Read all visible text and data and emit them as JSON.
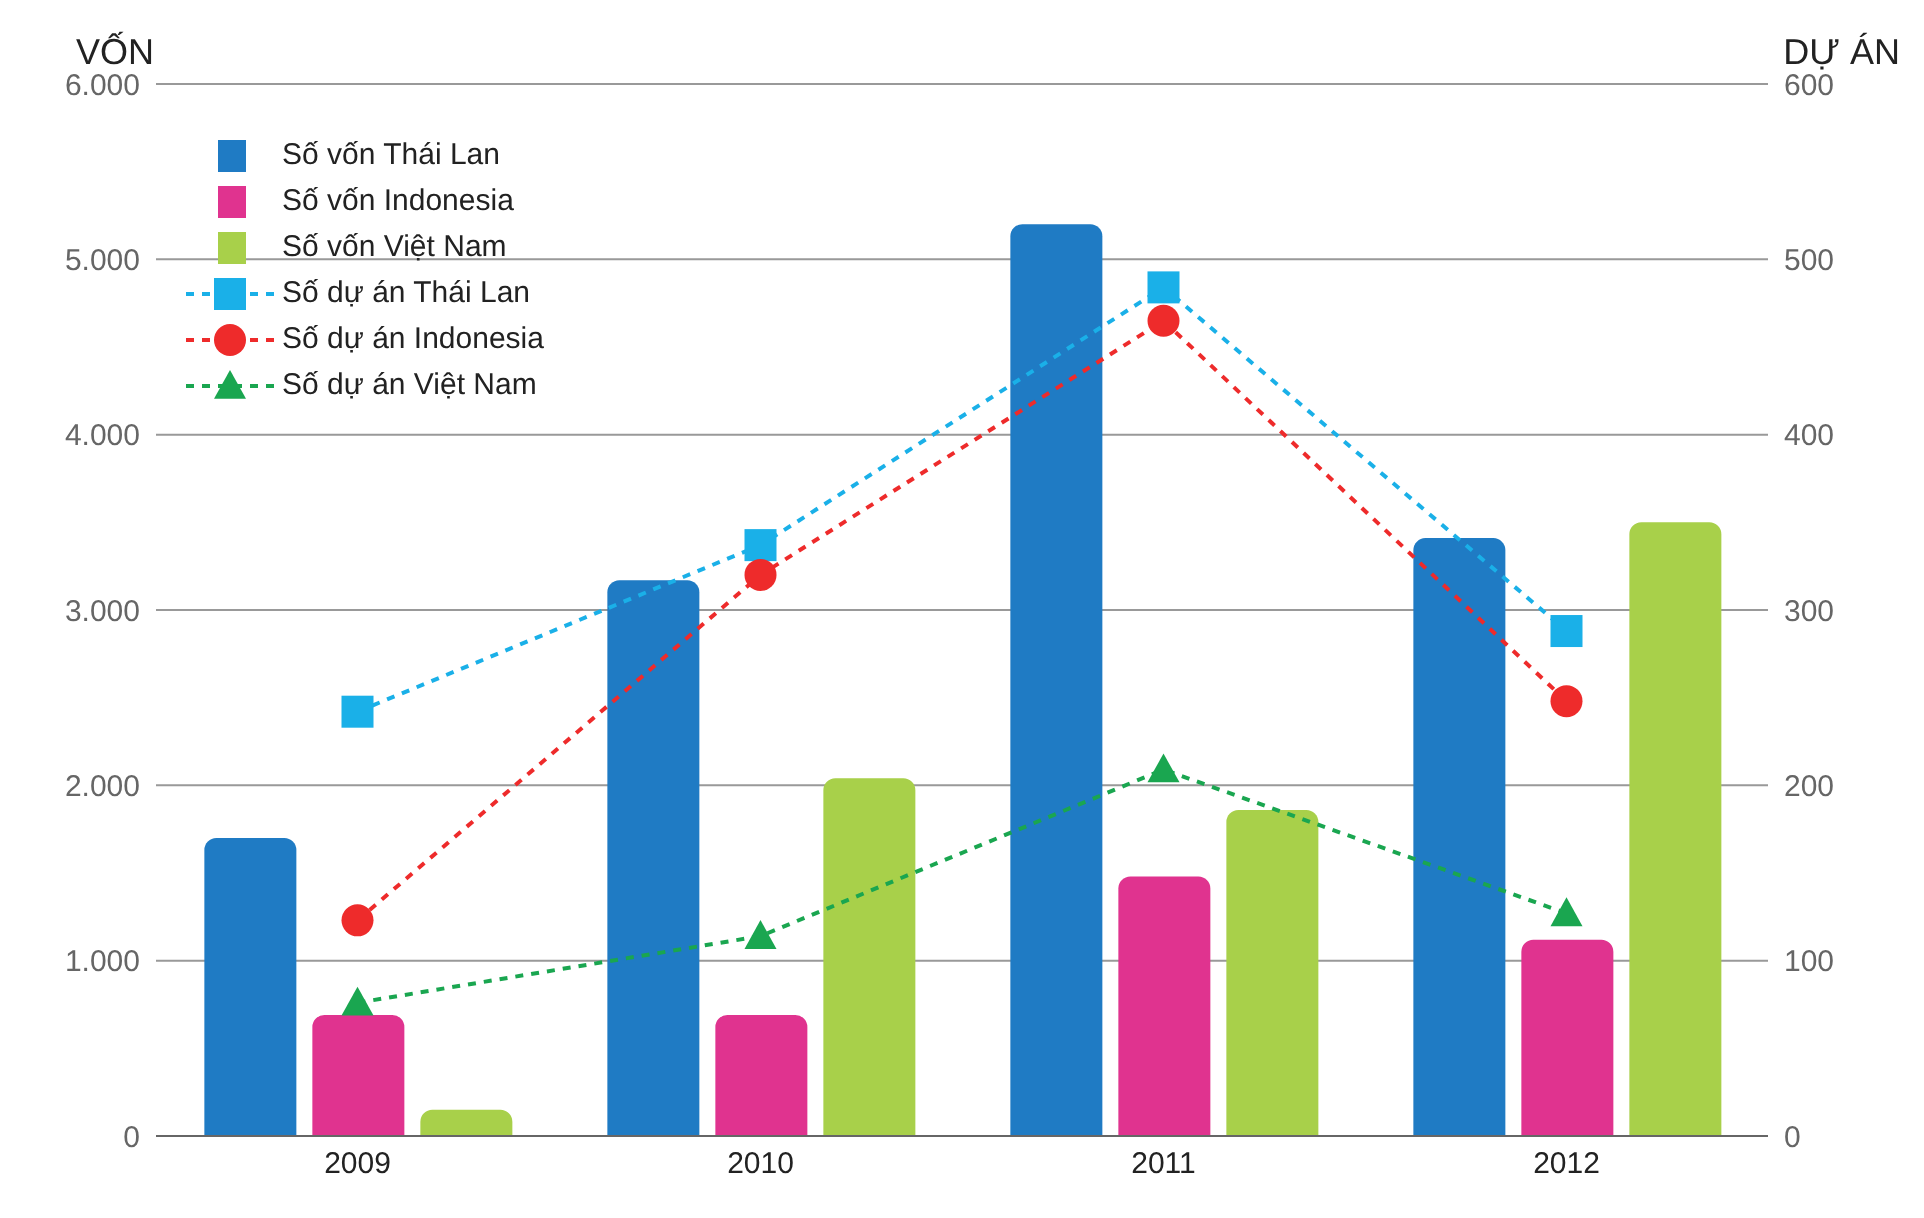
{
  "chart_data": {
    "type": "bar",
    "ylabel": "VỐN",
    "y2label": "DỰ ÁN",
    "categories": [
      "2009",
      "2010",
      "2011",
      "2012"
    ],
    "series": [
      {
        "name": "Số vốn Thái Lan",
        "color": "#1f7bc4",
        "values": [
          1700,
          3170,
          5200,
          3410
        ]
      },
      {
        "name": "Số vốn Indonesia",
        "color": "#e0338f",
        "values": [
          690,
          690,
          1480,
          1120
        ]
      },
      {
        "name": "Số vốn Việt Nam",
        "color": "#a8d04a",
        "values": [
          150,
          2040,
          1860,
          3500
        ]
      },
      {
        "name": "Số dự án Thái Lan",
        "type": "line",
        "axis": "y2",
        "color": "#1ab0e8",
        "marker": "square",
        "line_style": "dashed",
        "values": [
          242,
          337,
          484,
          288
        ]
      },
      {
        "name": "Số dự án Indonesia",
        "type": "line",
        "axis": "y2",
        "color": "#ee2b2b",
        "marker": "circle",
        "line_style": "dashed",
        "values": [
          123,
          320,
          465,
          248
        ]
      },
      {
        "name": "Số dự án Việt Nam",
        "type": "line",
        "axis": "y2",
        "color": "#1aa650",
        "marker": "triangle",
        "line_style": "dashed",
        "values": [
          76,
          114,
          209,
          127
        ]
      }
    ],
    "ylim": [
      0,
      6000
    ],
    "yticks": [
      {
        "value": 0,
        "label": "0"
      },
      {
        "value": 1000,
        "label": "1.000"
      },
      {
        "value": 2000,
        "label": "2.000"
      },
      {
        "value": 3000,
        "label": "3.000"
      },
      {
        "value": 4000,
        "label": "4.000"
      },
      {
        "value": 5000,
        "label": "5.000"
      },
      {
        "value": 6000,
        "label": "6.000"
      }
    ],
    "y2lim": [
      0,
      600
    ],
    "y2ticks": [
      0,
      100,
      200,
      300,
      400,
      500,
      600
    ],
    "grid": "y",
    "legend": "top left"
  }
}
